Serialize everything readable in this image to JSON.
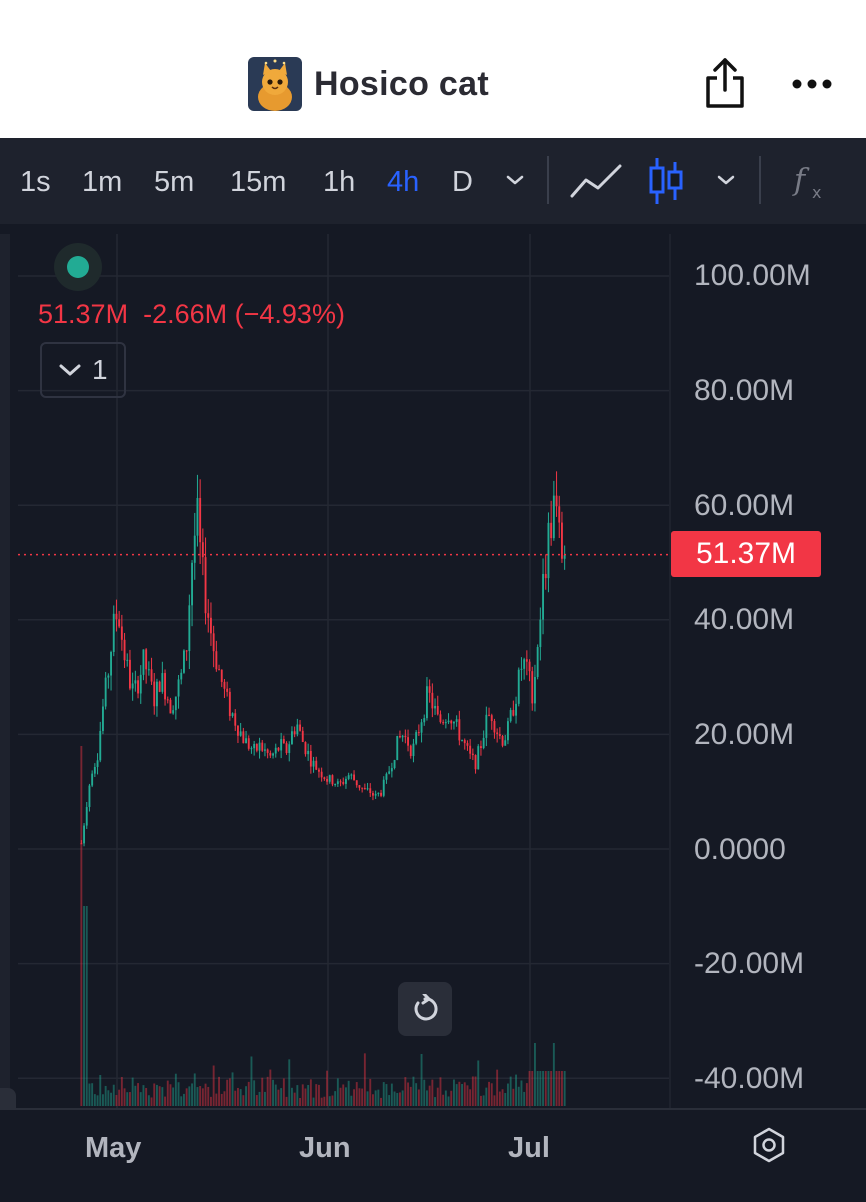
{
  "header": {
    "title": "Hosico cat",
    "avatar_icon": "cat-avatar-icon",
    "share_icon": "share-icon",
    "more_icon": "more-icon"
  },
  "toolbar": {
    "intervals": [
      "1s",
      "1m",
      "5m",
      "15m",
      "1h",
      "4h",
      "D"
    ],
    "active_interval": "4h",
    "accent_color": "#2962ff"
  },
  "legend": {
    "last": "51.37M",
    "change": "-2.66M",
    "change_pct": "(−4.93%)",
    "collapse_count": "1",
    "down_color": "#f23645",
    "up_color": "#22ab94"
  },
  "price_tag": "51.37M",
  "chart_data": {
    "type": "candlestick",
    "x_labels": [
      "May",
      "Jun",
      "Jul"
    ],
    "y_labels": [
      "100.00M",
      "80.00M",
      "60.00M",
      "40.00M",
      "20.00M",
      "0.0000",
      "-20.00M",
      "-40.00M"
    ],
    "ylim": [
      -40000000,
      100000000
    ],
    "last_value": 51370000,
    "approx_close_path_millions": [
      [
        0,
        1
      ],
      [
        1,
        8
      ],
      [
        2,
        14
      ],
      [
        3,
        16
      ],
      [
        4,
        24
      ],
      [
        5,
        30
      ],
      [
        6,
        38
      ],
      [
        7,
        42
      ],
      [
        8,
        35
      ],
      [
        9,
        30
      ],
      [
        10,
        27
      ],
      [
        11,
        30
      ],
      [
        12,
        33
      ],
      [
        13,
        29
      ],
      [
        14,
        26
      ],
      [
        15,
        30
      ],
      [
        16,
        28
      ],
      [
        17,
        25
      ],
      [
        18,
        27
      ],
      [
        19,
        30
      ],
      [
        20,
        35
      ],
      [
        21,
        50
      ],
      [
        22,
        58
      ],
      [
        23,
        48
      ],
      [
        24,
        42
      ],
      [
        25,
        36
      ],
      [
        26,
        32
      ],
      [
        27,
        28
      ],
      [
        28,
        25
      ],
      [
        29,
        23
      ],
      [
        30,
        21
      ],
      [
        31,
        19
      ],
      [
        32,
        18
      ],
      [
        33,
        17
      ],
      [
        34,
        18
      ],
      [
        35,
        17
      ],
      [
        36,
        16
      ],
      [
        37,
        17
      ],
      [
        38,
        18
      ],
      [
        39,
        17
      ],
      [
        40,
        20
      ],
      [
        41,
        22
      ],
      [
        42,
        19
      ],
      [
        43,
        17
      ],
      [
        44,
        15
      ],
      [
        45,
        14
      ],
      [
        46,
        13
      ],
      [
        47,
        12
      ],
      [
        48,
        12
      ],
      [
        49,
        11
      ],
      [
        50,
        12
      ],
      [
        51,
        13
      ],
      [
        52,
        12
      ],
      [
        53,
        11
      ],
      [
        54,
        10
      ],
      [
        55,
        10
      ],
      [
        56,
        9
      ],
      [
        57,
        10
      ],
      [
        58,
        12
      ],
      [
        59,
        15
      ],
      [
        60,
        18
      ],
      [
        61,
        20
      ],
      [
        62,
        19
      ],
      [
        63,
        17
      ],
      [
        64,
        20
      ],
      [
        65,
        24
      ],
      [
        66,
        27
      ],
      [
        67,
        25
      ],
      [
        68,
        22
      ],
      [
        69,
        23
      ],
      [
        70,
        24
      ],
      [
        71,
        22
      ],
      [
        72,
        20
      ],
      [
        73,
        18
      ],
      [
        74,
        16
      ],
      [
        75,
        15
      ],
      [
        76,
        18
      ],
      [
        77,
        22
      ],
      [
        78,
        24
      ],
      [
        79,
        21
      ],
      [
        80,
        19
      ],
      [
        81,
        20
      ],
      [
        82,
        24
      ],
      [
        83,
        28
      ],
      [
        84,
        33
      ],
      [
        85,
        30
      ],
      [
        86,
        27
      ],
      [
        87,
        38
      ],
      [
        88,
        47
      ],
      [
        89,
        55
      ],
      [
        90,
        60
      ],
      [
        91,
        54
      ],
      [
        92,
        51.37
      ]
    ],
    "grid": true
  }
}
